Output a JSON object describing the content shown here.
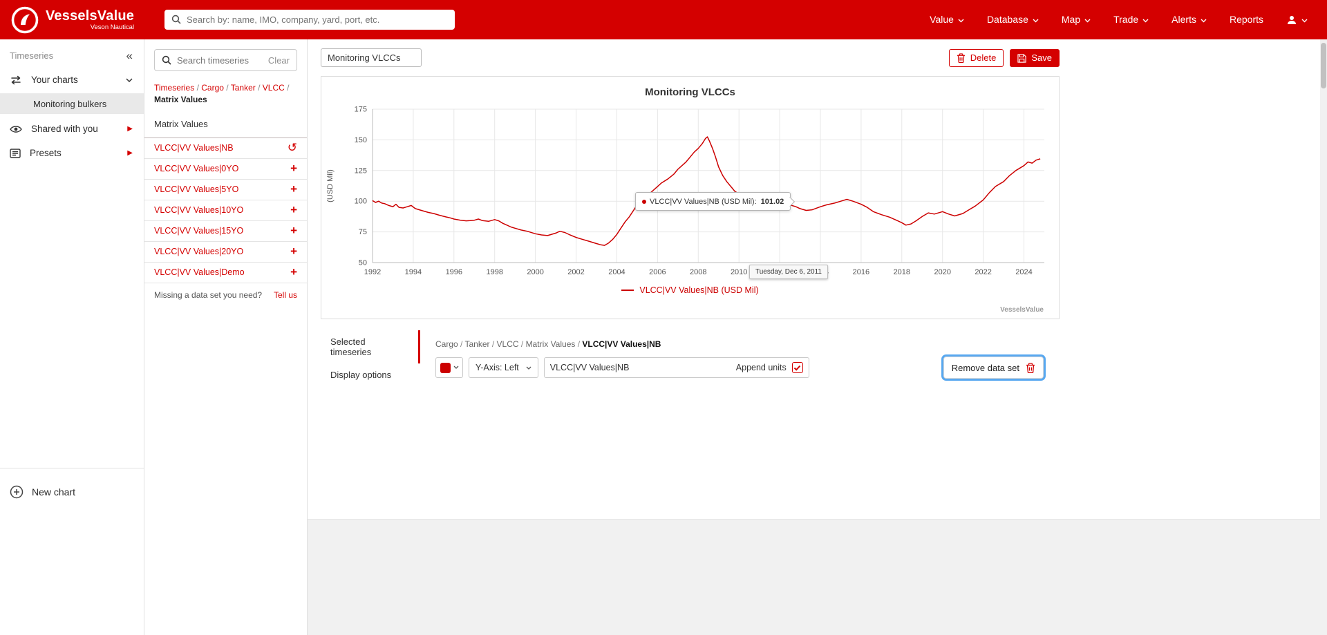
{
  "colors": {
    "accent": "#d40000",
    "chart_line": "#cc0000",
    "focus_ring": "#58a8f0"
  },
  "icons": {
    "collapse": "«",
    "undo": "↺",
    "add": "+",
    "arrow_right": "▶"
  },
  "brand": {
    "name": "VesselsValue",
    "subtitle": "Veson Nautical"
  },
  "topnav": {
    "search_placeholder": "Search by: name, IMO, company, yard, port, etc.",
    "items": [
      {
        "label": "Value"
      },
      {
        "label": "Database"
      },
      {
        "label": "Map"
      },
      {
        "label": "Trade"
      },
      {
        "label": "Alerts"
      },
      {
        "label": "Reports"
      }
    ]
  },
  "sidebar": {
    "title": "Timeseries",
    "your_charts": "Your charts",
    "chart_items": [
      "Monitoring bulkers"
    ],
    "shared": "Shared with you",
    "presets": "Presets",
    "new_chart": "New chart"
  },
  "panel": {
    "search_placeholder": "Search timeseries",
    "clear_label": "Clear",
    "breadcrumb": [
      "Timeseries",
      "Cargo",
      "Tanker",
      "VLCC"
    ],
    "breadcrumb_current": "Matrix Values",
    "section_label": "Matrix Values",
    "datasets": [
      {
        "label": "VLCC|VV Values|NB",
        "action": "undo"
      },
      {
        "label": "VLCC|VV Values|0YO",
        "action": "add"
      },
      {
        "label": "VLCC|VV Values|5YO",
        "action": "add"
      },
      {
        "label": "VLCC|VV Values|10YO",
        "action": "add"
      },
      {
        "label": "VLCC|VV Values|15YO",
        "action": "add"
      },
      {
        "label": "VLCC|VV Values|20YO",
        "action": "add"
      },
      {
        "label": "VLCC|VV Values|Demo",
        "action": "add"
      }
    ],
    "missing_text": "Missing a data set you need?",
    "tell_us": "Tell us"
  },
  "main": {
    "chart_title_input": "Monitoring VLCCs",
    "delete_label": "Delete",
    "save_label": "Save",
    "watermark": "VesselsValue"
  },
  "tooltip": {
    "label": "VLCC|VV Values|NB (USD Mil):",
    "value": "101.02",
    "date": "Tuesday, Dec 6, 2011"
  },
  "tabs": {
    "selected": "Selected timeseries",
    "display": "Display options"
  },
  "selected_panel": {
    "breadcrumb": [
      "Cargo",
      "Tanker",
      "VLCC",
      "Matrix Values"
    ],
    "breadcrumb_current": "VLCC|VV Values|NB",
    "yaxis_value": "Y-Axis: Left",
    "name_value": "VLCC|VV Values|NB",
    "append_units_label": "Append units",
    "append_units_checked": true,
    "remove_label": "Remove data set"
  },
  "chart_data": {
    "type": "line",
    "title": "Monitoring VLCCs",
    "ylabel": "(USD Mil)",
    "legend": "VLCC|VV Values|NB (USD Mil)",
    "legend_position": "bottom",
    "grid": true,
    "ylim": [
      50,
      175
    ],
    "yticks": [
      50,
      75,
      100,
      125,
      150,
      175
    ],
    "xlim": [
      1992,
      2025
    ],
    "xticks": [
      1992,
      1994,
      1996,
      1998,
      2000,
      2002,
      2004,
      2006,
      2008,
      2010,
      2012,
      2014,
      2016,
      2018,
      2020,
      2022,
      2024
    ],
    "hover_point": {
      "x": 2011.93,
      "y": 101.02
    },
    "series": [
      {
        "name": "VLCC|VV Values|NB",
        "color": "#cc0000",
        "points": [
          [
            1992.0,
            100.5
          ],
          [
            1992.15,
            99
          ],
          [
            1992.3,
            100
          ],
          [
            1992.45,
            98.5
          ],
          [
            1992.6,
            98
          ],
          [
            1992.8,
            96.5
          ],
          [
            1993.0,
            95.5
          ],
          [
            1993.15,
            97.5
          ],
          [
            1993.3,
            95
          ],
          [
            1993.5,
            94.5
          ],
          [
            1993.7,
            95.5
          ],
          [
            1993.9,
            96.5
          ],
          [
            1994.1,
            94
          ],
          [
            1994.3,
            93
          ],
          [
            1994.5,
            92
          ],
          [
            1994.75,
            90.8
          ],
          [
            1995.0,
            90
          ],
          [
            1995.3,
            88.5
          ],
          [
            1995.6,
            87.2
          ],
          [
            1995.8,
            86.5
          ],
          [
            1996.0,
            85.5
          ],
          [
            1996.3,
            84.6
          ],
          [
            1996.6,
            84
          ],
          [
            1996.8,
            84.2
          ],
          [
            1997.0,
            84.5
          ],
          [
            1997.2,
            85.5
          ],
          [
            1997.4,
            84.2
          ],
          [
            1997.7,
            83.6
          ],
          [
            1998.0,
            85
          ],
          [
            1998.2,
            84
          ],
          [
            1998.4,
            82
          ],
          [
            1998.6,
            80.5
          ],
          [
            1998.8,
            79
          ],
          [
            1999.0,
            78
          ],
          [
            1999.3,
            76.5
          ],
          [
            1999.6,
            75.5
          ],
          [
            2000.0,
            73.5
          ],
          [
            2000.3,
            72.5
          ],
          [
            2000.6,
            72
          ],
          [
            2001.0,
            74
          ],
          [
            2001.2,
            75.5
          ],
          [
            2001.45,
            74.5
          ],
          [
            2001.7,
            72.5
          ],
          [
            2002.0,
            70.5
          ],
          [
            2002.3,
            69
          ],
          [
            2002.6,
            67.5
          ],
          [
            2003.0,
            65.5
          ],
          [
            2003.2,
            64.5
          ],
          [
            2003.4,
            64
          ],
          [
            2003.6,
            66
          ],
          [
            2003.8,
            69
          ],
          [
            2004.0,
            73
          ],
          [
            2004.2,
            78
          ],
          [
            2004.4,
            83
          ],
          [
            2004.6,
            87
          ],
          [
            2004.8,
            92
          ],
          [
            2005.0,
            97
          ],
          [
            2005.2,
            101
          ],
          [
            2005.4,
            104
          ],
          [
            2005.6,
            106
          ],
          [
            2005.8,
            109
          ],
          [
            2006.0,
            112
          ],
          [
            2006.2,
            115
          ],
          [
            2006.5,
            118
          ],
          [
            2006.8,
            122
          ],
          [
            2007.0,
            126
          ],
          [
            2007.2,
            129
          ],
          [
            2007.4,
            132
          ],
          [
            2007.6,
            136
          ],
          [
            2007.8,
            140
          ],
          [
            2008.0,
            143
          ],
          [
            2008.2,
            147
          ],
          [
            2008.35,
            151
          ],
          [
            2008.45,
            152.5
          ],
          [
            2008.55,
            149
          ],
          [
            2008.7,
            143
          ],
          [
            2008.85,
            136
          ],
          [
            2009.0,
            128
          ],
          [
            2009.2,
            121
          ],
          [
            2009.4,
            116
          ],
          [
            2009.6,
            112
          ],
          [
            2009.8,
            108
          ],
          [
            2010.0,
            106
          ],
          [
            2010.3,
            104
          ],
          [
            2010.6,
            102.5
          ],
          [
            2010.9,
            101.5
          ],
          [
            2011.2,
            101
          ],
          [
            2011.5,
            100.5
          ],
          [
            2011.93,
            101.02
          ],
          [
            2012.2,
            99
          ],
          [
            2012.5,
            97
          ],
          [
            2012.8,
            95.5
          ],
          [
            2013.0,
            94
          ],
          [
            2013.3,
            92.5
          ],
          [
            2013.6,
            93
          ],
          [
            2014.0,
            95.5
          ],
          [
            2014.3,
            97
          ],
          [
            2014.7,
            98.5
          ],
          [
            2015.0,
            100
          ],
          [
            2015.3,
            101.5
          ],
          [
            2015.6,
            100
          ],
          [
            2016.0,
            97.5
          ],
          [
            2016.3,
            95
          ],
          [
            2016.6,
            91.5
          ],
          [
            2017.0,
            89
          ],
          [
            2017.4,
            87
          ],
          [
            2017.8,
            84
          ],
          [
            2018.0,
            82.5
          ],
          [
            2018.2,
            80.5
          ],
          [
            2018.45,
            81.5
          ],
          [
            2018.7,
            84
          ],
          [
            2019.0,
            87.5
          ],
          [
            2019.3,
            90.5
          ],
          [
            2019.6,
            89.5
          ],
          [
            2020.0,
            91.5
          ],
          [
            2020.3,
            89.5
          ],
          [
            2020.6,
            88
          ],
          [
            2021.0,
            90
          ],
          [
            2021.3,
            93
          ],
          [
            2021.6,
            96
          ],
          [
            2022.0,
            101
          ],
          [
            2022.3,
            107
          ],
          [
            2022.6,
            112
          ],
          [
            2023.0,
            116
          ],
          [
            2023.3,
            121
          ],
          [
            2023.6,
            125
          ],
          [
            2024.0,
            129
          ],
          [
            2024.2,
            132
          ],
          [
            2024.4,
            131
          ],
          [
            2024.6,
            133.5
          ],
          [
            2024.8,
            134.5
          ]
        ]
      }
    ]
  }
}
